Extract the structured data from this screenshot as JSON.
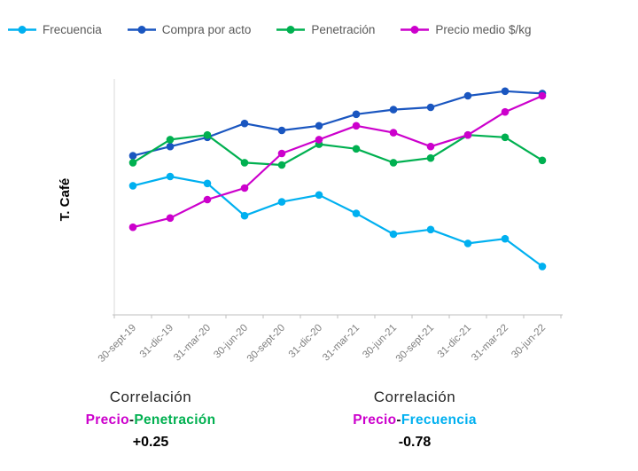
{
  "chart_data": {
    "type": "line",
    "title": "",
    "xlabel": "",
    "ylabel": "T. Café",
    "ylim": [
      0,
      100
    ],
    "grid": false,
    "legend_position": "top",
    "categories": [
      "30-sept-19",
      "31-dic-19",
      "31-mar-20",
      "30-jun-20",
      "30-sept-20",
      "31-dic-20",
      "31-mar-21",
      "30-jun-21",
      "30-sept-21",
      "31-dic-21",
      "31-mar-22",
      "30-jun-22"
    ],
    "series": [
      {
        "name": "Frecuencia",
        "color": "#00b0f0",
        "values": [
          56,
          60,
          57,
          43,
          49,
          52,
          44,
          35,
          37,
          31,
          33,
          21
        ]
      },
      {
        "name": "Compra por acto",
        "color": "#1a56c0",
        "values": [
          69,
          73,
          77,
          83,
          80,
          82,
          87,
          89,
          90,
          95,
          97,
          96
        ]
      },
      {
        "name": "Penetración",
        "color": "#00b050",
        "values": [
          66,
          76,
          78,
          66,
          65,
          74,
          72,
          66,
          68,
          78,
          77,
          67
        ]
      },
      {
        "name": "Precio medio $/kg",
        "color": "#cc00cc",
        "values": [
          38,
          42,
          50,
          55,
          70,
          76,
          82,
          79,
          73,
          78,
          88,
          95
        ]
      }
    ]
  },
  "colors": {
    "axis_line": "#bfbfbf",
    "axis_side": "#d9d9d9",
    "tick_label": "#7f7f7f",
    "legend_text": "#595959",
    "annotation_title": "#262626",
    "annotation_value": "#000000"
  },
  "annotations": [
    {
      "title": "Correlación",
      "segments": [
        {
          "text": "Precio",
          "color": "#cc00cc"
        },
        {
          "text": "-",
          "color": "#1a1a1a"
        },
        {
          "text": "Penetración",
          "color": "#00b050"
        }
      ],
      "value": "+0.25"
    },
    {
      "title": "Correlación",
      "segments": [
        {
          "text": "Precio",
          "color": "#cc00cc"
        },
        {
          "text": "-",
          "color": "#1a1a1a"
        },
        {
          "text": "Frecuencia",
          "color": "#00b0f0"
        }
      ],
      "value": "-0.78"
    }
  ]
}
